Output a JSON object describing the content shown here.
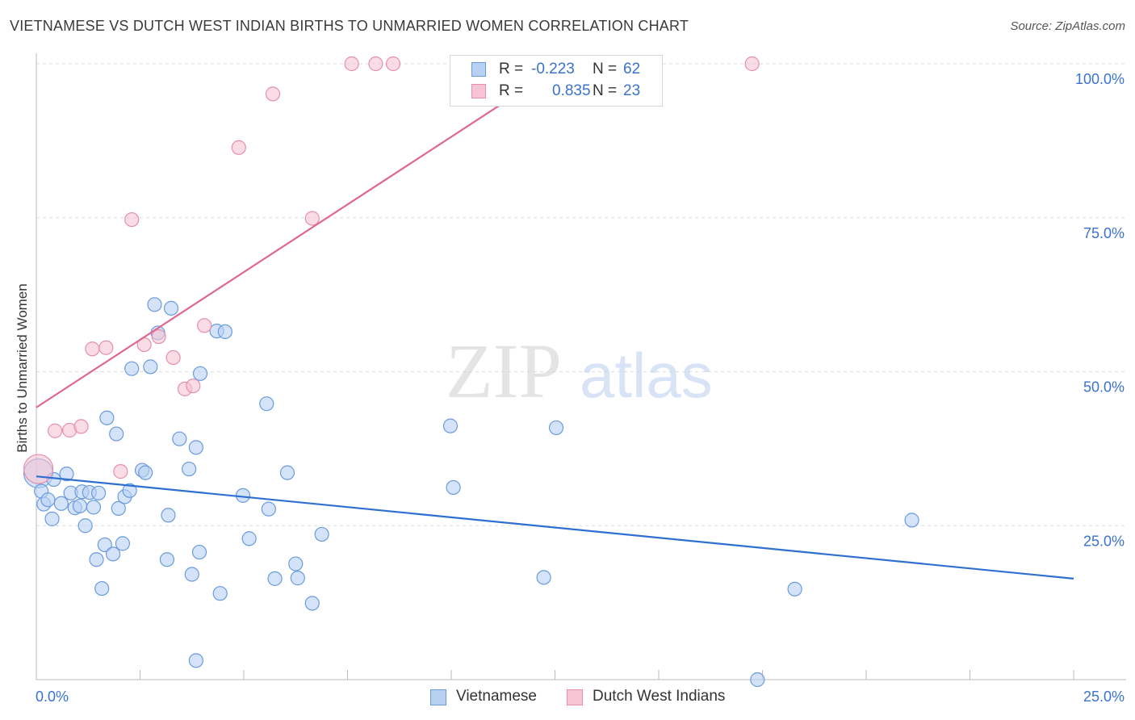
{
  "header": {
    "title": "VIETNAMESE VS DUTCH WEST INDIAN BIRTHS TO UNMARRIED WOMEN CORRELATION CHART",
    "source": "Source: ZipAtlas.com"
  },
  "watermark": {
    "zip": "ZIP",
    "atlas": "atlas"
  },
  "legend": {
    "r_label": "R =",
    "n_label": "N =",
    "rows": [
      {
        "series": "Vietnamese",
        "r": "-0.223",
        "n": "62"
      },
      {
        "series": "Dutch West Indians",
        "r": "0.835",
        "n": "23"
      }
    ]
  },
  "colors": {
    "blue_fill": "#b8d1f3",
    "blue_stroke": "#6a9be0",
    "blue_line": "#2e6fd1",
    "pink_fill": "#f7c4d3",
    "pink_stroke": "#e58fab",
    "pink_line": "#e0688f",
    "tick_label": "#3a72d0",
    "grid": "#dddddd"
  },
  "chart_data": {
    "type": "scatter",
    "title": "VIETNAMESE VS DUTCH WEST INDIAN BIRTHS TO UNMARRIED WOMEN CORRELATION CHART",
    "xlabel": "",
    "ylabel": "Births to Unmarried Women",
    "xlim": [
      0,
      25
    ],
    "ylim": [
      0,
      100
    ],
    "x_tick_labels": [
      "0.0%",
      "25.0%"
    ],
    "y_tick_labels": [
      "25.0%",
      "50.0%",
      "75.0%",
      "100.0%"
    ],
    "grid": true,
    "legend_position": "top-center",
    "series": [
      {
        "name": "Vietnamese",
        "color": "#6a9be0",
        "r": -0.223,
        "n": 62,
        "trend": {
          "x": [
            0,
            25
          ],
          "y": [
            33.0,
            16.4
          ]
        },
        "points": [
          {
            "x": 0.05,
            "y": 33.5,
            "big": true
          },
          {
            "x": 0.12,
            "y": 30.6
          },
          {
            "x": 0.18,
            "y": 28.5
          },
          {
            "x": 0.28,
            "y": 29.2
          },
          {
            "x": 0.38,
            "y": 26.1
          },
          {
            "x": 0.42,
            "y": 32.5
          },
          {
            "x": 0.6,
            "y": 28.6
          },
          {
            "x": 0.73,
            "y": 33.4
          },
          {
            "x": 0.83,
            "y": 30.3
          },
          {
            "x": 0.93,
            "y": 27.9
          },
          {
            "x": 1.05,
            "y": 28.2
          },
          {
            "x": 1.1,
            "y": 30.5
          },
          {
            "x": 1.18,
            "y": 25.0
          },
          {
            "x": 1.28,
            "y": 30.4
          },
          {
            "x": 1.38,
            "y": 28.0
          },
          {
            "x": 1.45,
            "y": 19.5
          },
          {
            "x": 1.58,
            "y": 14.8
          },
          {
            "x": 1.65,
            "y": 21.9
          },
          {
            "x": 1.7,
            "y": 42.5
          },
          {
            "x": 1.85,
            "y": 20.4
          },
          {
            "x": 1.93,
            "y": 39.9
          },
          {
            "x": 1.98,
            "y": 27.8
          },
          {
            "x": 2.08,
            "y": 22.1
          },
          {
            "x": 2.13,
            "y": 29.7
          },
          {
            "x": 2.25,
            "y": 30.7
          },
          {
            "x": 2.3,
            "y": 50.5
          },
          {
            "x": 2.55,
            "y": 34.0
          },
          {
            "x": 2.63,
            "y": 33.6
          },
          {
            "x": 2.75,
            "y": 50.8
          },
          {
            "x": 2.85,
            "y": 60.9
          },
          {
            "x": 2.93,
            "y": 56.3
          },
          {
            "x": 3.15,
            "y": 19.5
          },
          {
            "x": 3.18,
            "y": 26.7
          },
          {
            "x": 3.25,
            "y": 60.3
          },
          {
            "x": 3.45,
            "y": 39.1
          },
          {
            "x": 3.68,
            "y": 34.2
          },
          {
            "x": 3.75,
            "y": 17.1
          },
          {
            "x": 3.85,
            "y": 37.7
          },
          {
            "x": 3.93,
            "y": 20.7
          },
          {
            "x": 3.95,
            "y": 49.7
          },
          {
            "x": 4.35,
            "y": 56.6
          },
          {
            "x": 4.43,
            "y": 14.0
          },
          {
            "x": 4.55,
            "y": 56.5
          },
          {
            "x": 4.98,
            "y": 29.9
          },
          {
            "x": 5.13,
            "y": 22.9
          },
          {
            "x": 5.55,
            "y": 44.8
          },
          {
            "x": 5.6,
            "y": 27.7
          },
          {
            "x": 5.75,
            "y": 16.4
          },
          {
            "x": 6.05,
            "y": 33.6
          },
          {
            "x": 6.25,
            "y": 18.8
          },
          {
            "x": 6.3,
            "y": 16.5
          },
          {
            "x": 6.65,
            "y": 12.4
          },
          {
            "x": 6.88,
            "y": 23.6
          },
          {
            "x": 9.98,
            "y": 41.2
          },
          {
            "x": 10.05,
            "y": 31.2
          },
          {
            "x": 12.23,
            "y": 16.6
          },
          {
            "x": 12.53,
            "y": 40.9
          },
          {
            "x": 3.85,
            "y": 3.1
          },
          {
            "x": 17.38,
            "y": 0.0
          },
          {
            "x": 18.28,
            "y": 14.7
          },
          {
            "x": 21.1,
            "y": 25.9
          },
          {
            "x": 1.5,
            "y": 30.3
          }
        ]
      },
      {
        "name": "Dutch West Indians",
        "color": "#e58fab",
        "r": 0.835,
        "n": 23,
        "trend": {
          "x": [
            0,
            12.7
          ],
          "y": [
            44.2,
            100.0
          ]
        },
        "points": [
          {
            "x": 0.05,
            "y": 34.2,
            "big": true
          },
          {
            "x": 0.45,
            "y": 40.4
          },
          {
            "x": 0.8,
            "y": 40.5
          },
          {
            "x": 1.08,
            "y": 41.1
          },
          {
            "x": 1.35,
            "y": 53.7
          },
          {
            "x": 1.68,
            "y": 53.9
          },
          {
            "x": 2.03,
            "y": 33.8
          },
          {
            "x": 2.3,
            "y": 74.7
          },
          {
            "x": 2.6,
            "y": 54.4
          },
          {
            "x": 2.95,
            "y": 55.7
          },
          {
            "x": 3.3,
            "y": 52.3
          },
          {
            "x": 3.58,
            "y": 47.2
          },
          {
            "x": 3.78,
            "y": 47.7
          },
          {
            "x": 4.05,
            "y": 57.5
          },
          {
            "x": 4.88,
            "y": 86.4
          },
          {
            "x": 5.7,
            "y": 95.1
          },
          {
            "x": 6.65,
            "y": 74.9
          },
          {
            "x": 7.6,
            "y": 100.0
          },
          {
            "x": 8.18,
            "y": 100.0
          },
          {
            "x": 8.6,
            "y": 100.0
          },
          {
            "x": 12.83,
            "y": 100.0
          },
          {
            "x": 14.4,
            "y": 100.0
          },
          {
            "x": 17.25,
            "y": 100.0
          }
        ]
      }
    ]
  }
}
